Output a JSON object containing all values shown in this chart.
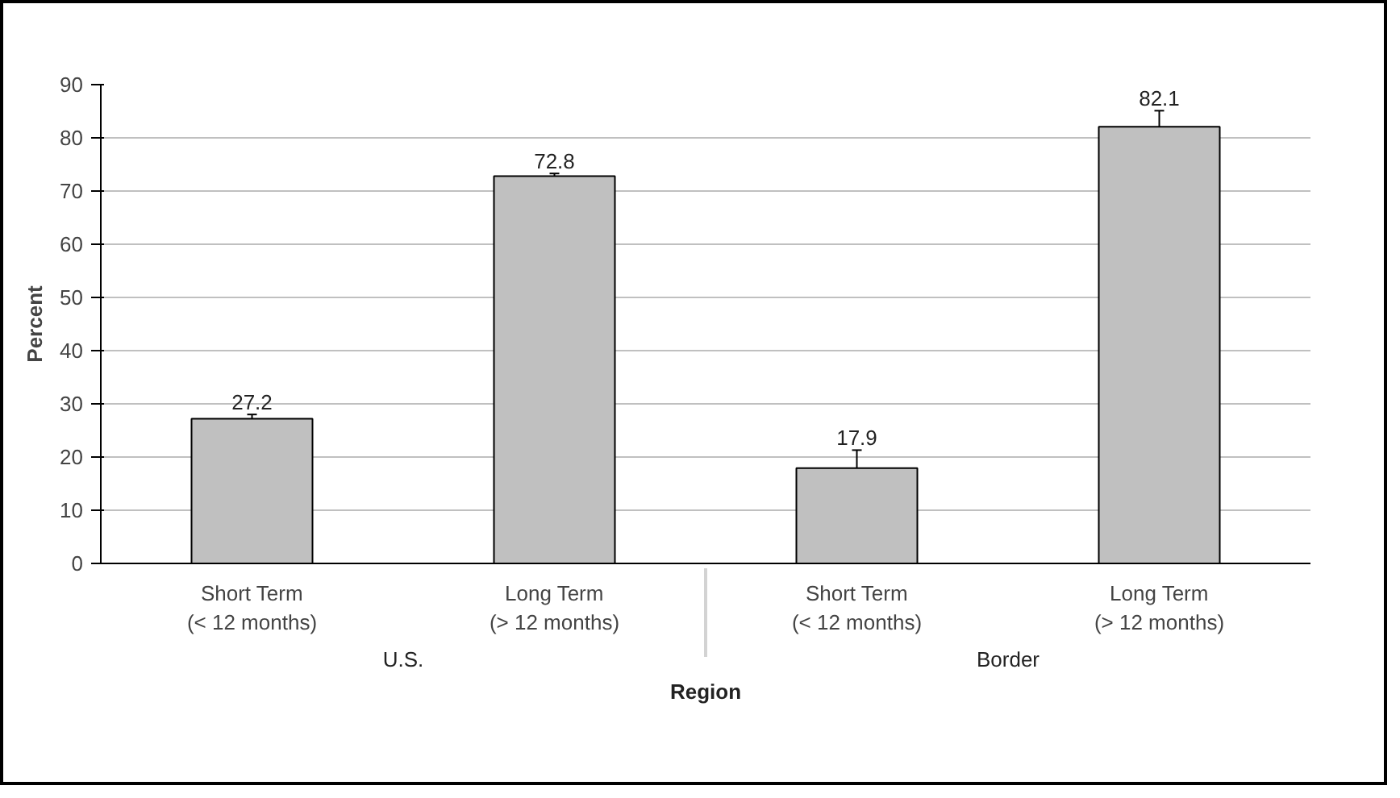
{
  "chart_data": {
    "type": "bar",
    "xlabel": "Region",
    "ylabel": "Percent",
    "categories": [
      "Short Term\n(< 12 months)",
      "Long Term\n(> 12 months)",
      "Short Term\n(< 12 months)",
      "Long Term\n(> 12 months)"
    ],
    "annotations": [
      "U.S.",
      "Border"
    ],
    "values": [
      27.2,
      72.8,
      17.9,
      82.1
    ],
    "color": "#c0c0c0",
    "errors": [
      0.8,
      0.5,
      3.4,
      3.0
    ],
    "data_labels": true,
    "ylim": [
      0,
      90
    ],
    "yticks": [
      0,
      10,
      20,
      30,
      40,
      50,
      60,
      70,
      80,
      90
    ],
    "grid": "y"
  }
}
